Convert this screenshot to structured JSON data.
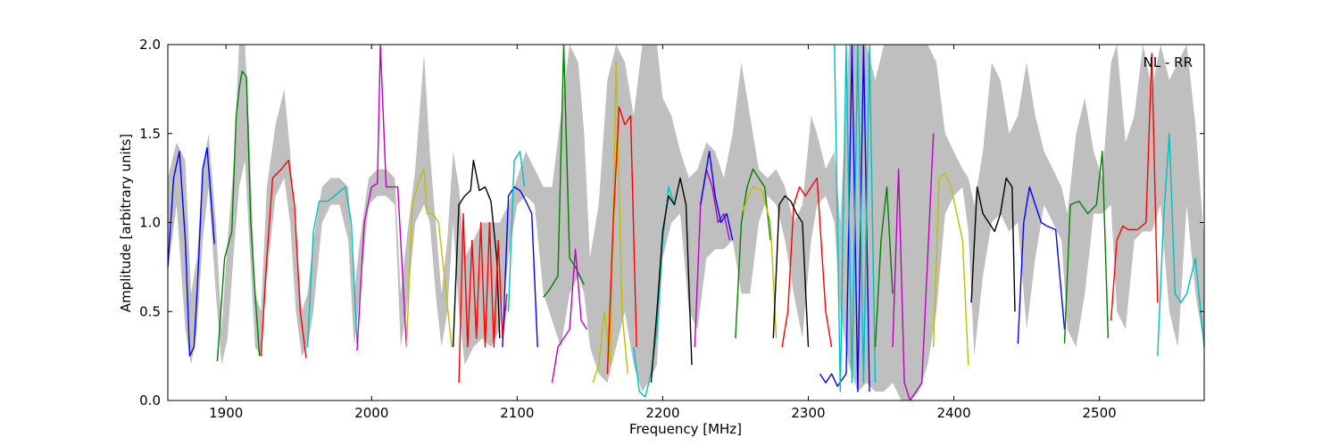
{
  "chart_data": {
    "type": "line",
    "title": "",
    "xlabel": "Frequency [MHz]",
    "ylabel": "Amplitude [arbitrary units]",
    "xlim": [
      1860,
      2572
    ],
    "ylim": [
      0.0,
      2.0
    ],
    "xticks": [
      1900,
      2000,
      2100,
      2200,
      2300,
      2400,
      2500
    ],
    "xtick_labels": [
      "1900",
      "2000",
      "2100",
      "2200",
      "2300",
      "2400",
      "2500"
    ],
    "yticks": [
      0.0,
      0.5,
      1.0,
      1.5,
      2.0
    ],
    "ytick_labels": [
      "0.0",
      "0.5",
      "1.0",
      "1.5",
      "2.0"
    ],
    "grid": false,
    "annotation": "NL - RR",
    "envelope_color": "#bfbfbf",
    "envelope": {
      "x": [
        1860,
        1866,
        1872,
        1876,
        1880,
        1884,
        1888,
        1893,
        1897,
        1901,
        1905,
        1909,
        1913,
        1916,
        1920,
        1924,
        1928,
        1934,
        1940,
        1944,
        1948,
        1952,
        1956,
        1960,
        1966,
        1972,
        1978,
        1984,
        1988,
        1992,
        1998,
        2004,
        2010,
        2016,
        2020,
        2024,
        2030,
        2036,
        2040,
        2044,
        2048,
        2052,
        2056,
        2060,
        2064,
        2070,
        2076,
        2082,
        2088,
        2094,
        2100,
        2106,
        2112,
        2118,
        2124,
        2130,
        2136,
        2142,
        2146,
        2150,
        2156,
        2162,
        2168,
        2174,
        2180,
        2186,
        2190,
        2196,
        2200,
        2206,
        2212,
        2218,
        2224,
        2230,
        2236,
        2242,
        2248,
        2254,
        2260,
        2266,
        2272,
        2278,
        2284,
        2290,
        2296,
        2302,
        2306,
        2312,
        2318,
        2322,
        2328,
        2334,
        2340,
        2346,
        2352,
        2358,
        2364,
        2370,
        2376,
        2382,
        2388,
        2394,
        2400,
        2406,
        2410,
        2414,
        2420,
        2426,
        2432,
        2438,
        2444,
        2450,
        2456,
        2462,
        2468,
        2474,
        2478,
        2484,
        2490,
        2496,
        2502,
        2508,
        2512,
        2518,
        2524,
        2530,
        2536,
        2542,
        2548,
        2554,
        2560,
        2566,
        2572
      ],
      "lo": [
        0.72,
        1.1,
        0.4,
        0.2,
        0.4,
        0.9,
        1.2,
        0.6,
        0.2,
        0.35,
        0.8,
        1.2,
        1.35,
        0.9,
        0.3,
        0.25,
        0.7,
        1.15,
        1.25,
        1.0,
        0.5,
        0.25,
        0.3,
        0.5,
        1.0,
        1.1,
        1.1,
        0.9,
        0.3,
        0.6,
        1.1,
        1.15,
        1.15,
        1.1,
        0.3,
        0.5,
        1.0,
        1.1,
        1.0,
        0.6,
        0.3,
        0.5,
        1.0,
        0.5,
        0.2,
        0.3,
        0.35,
        0.3,
        0.4,
        0.8,
        1.1,
        1.15,
        1.1,
        0.6,
        0.45,
        0.3,
        0.6,
        0.7,
        0.6,
        0.3,
        0.15,
        0.1,
        0.3,
        0.5,
        0.2,
        0.05,
        0.1,
        0.2,
        0.8,
        1.0,
        1.05,
        0.5,
        0.4,
        0.8,
        0.85,
        0.85,
        0.9,
        0.6,
        0.6,
        1.0,
        1.15,
        1.1,
        0.9,
        0.6,
        0.35,
        0.9,
        1.1,
        1.15,
        1.0,
        0.5,
        0.2,
        0.05,
        0.1,
        0.05,
        0.05,
        0.1,
        0.0,
        0.0,
        0.05,
        0.2,
        0.5,
        1.05,
        1.15,
        1.2,
        0.95,
        0.25,
        0.7,
        1.0,
        1.05,
        0.95,
        1.0,
        0.4,
        0.8,
        1.1,
        1.0,
        0.9,
        0.4,
        0.3,
        0.6,
        1.05,
        1.05,
        1.1,
        0.5,
        0.4,
        0.9,
        0.95,
        0.95,
        1.1,
        0.5,
        0.3,
        1.1,
        0.6,
        0.3
      ],
      "hi": [
        1.25,
        1.45,
        1.35,
        0.6,
        0.8,
        1.3,
        1.5,
        1.0,
        0.4,
        0.9,
        1.3,
        2.0,
        2.0,
        1.5,
        0.6,
        0.5,
        1.2,
        1.55,
        1.75,
        1.4,
        0.9,
        0.5,
        0.6,
        0.9,
        1.2,
        1.25,
        1.25,
        1.2,
        0.6,
        0.9,
        1.25,
        1.3,
        1.3,
        1.25,
        0.6,
        0.9,
        1.3,
        1.95,
        1.4,
        1.0,
        0.6,
        0.9,
        1.4,
        1.2,
        0.8,
        0.9,
        1.0,
        1.0,
        1.0,
        1.1,
        1.25,
        1.4,
        1.3,
        1.2,
        1.2,
        1.6,
        2.0,
        1.9,
        1.5,
        0.8,
        1.1,
        1.8,
        2.0,
        1.9,
        1.6,
        2.0,
        2.0,
        2.0,
        1.7,
        1.6,
        1.4,
        1.25,
        1.3,
        1.45,
        1.4,
        1.25,
        1.5,
        1.9,
        1.6,
        1.3,
        1.25,
        1.3,
        1.2,
        1.0,
        1.1,
        1.6,
        1.5,
        1.3,
        1.4,
        1.0,
        2.0,
        2.0,
        2.0,
        1.8,
        2.0,
        2.0,
        2.0,
        2.0,
        2.0,
        2.0,
        1.9,
        1.5,
        1.4,
        1.3,
        1.25,
        1.1,
        1.4,
        1.9,
        1.8,
        1.5,
        1.6,
        1.9,
        1.6,
        1.4,
        1.3,
        1.2,
        1.05,
        1.5,
        1.7,
        1.4,
        1.25,
        1.9,
        2.0,
        1.45,
        1.6,
        2.0,
        1.75,
        2.0,
        1.8,
        1.9,
        2.0,
        1.55,
        0.9
      ]
    },
    "series": [
      {
        "color": "#0000ff",
        "x": [
          1860,
          1864,
          1868,
          1872,
          1875,
          1878,
          1881,
          1884,
          1887,
          1890,
          1892
        ],
        "y": [
          0.75,
          1.25,
          1.4,
          0.9,
          0.25,
          0.3,
          0.75,
          1.3,
          1.42,
          1.1,
          0.88
        ]
      },
      {
        "color": "#008000",
        "x": [
          1894,
          1899,
          1904,
          1907,
          1909,
          1911,
          1914,
          1917,
          1920,
          1923
        ],
        "y": [
          0.22,
          0.8,
          0.95,
          1.6,
          1.75,
          1.85,
          1.82,
          1.0,
          0.6,
          0.25
        ]
      },
      {
        "color": "#ff0000",
        "x": [
          1924,
          1928,
          1932,
          1938,
          1943,
          1947,
          1951,
          1955
        ],
        "y": [
          0.25,
          0.8,
          1.25,
          1.3,
          1.35,
          1.1,
          0.5,
          0.24
        ]
      },
      {
        "color": "#00bfbf",
        "x": [
          1956,
          1960,
          1964,
          1970,
          1976,
          1982,
          1986,
          1990
        ],
        "y": [
          0.3,
          0.95,
          1.12,
          1.12,
          1.16,
          1.2,
          1.0,
          0.32
        ]
      },
      {
        "color": "#bf00bf",
        "x": [
          1990,
          1995,
          2000,
          2004,
          2006,
          2010,
          2014,
          2018,
          2024
        ],
        "y": [
          0.28,
          1.0,
          1.2,
          1.22,
          2.0,
          1.2,
          1.2,
          1.2,
          0.3
        ]
      },
      {
        "color": "#bfbf00",
        "x": [
          2024,
          2028,
          2032,
          2036,
          2038,
          2042,
          2046,
          2050,
          2055
        ],
        "y": [
          0.3,
          1.1,
          1.22,
          1.3,
          1.05,
          1.05,
          1.0,
          0.7,
          0.3
        ]
      },
      {
        "color": "#000000",
        "x": [
          2056,
          2060,
          2064,
          2068,
          2070,
          2074,
          2078,
          2082,
          2086,
          2088
        ],
        "y": [
          0.3,
          1.1,
          1.15,
          1.18,
          1.35,
          1.18,
          1.2,
          1.12,
          0.8,
          0.35
        ]
      },
      {
        "color": "#ff0000",
        "x": [
          2060,
          2063,
          2066,
          2069,
          2072,
          2075,
          2078,
          2081,
          2084,
          2087,
          2090,
          2093
        ],
        "y": [
          0.1,
          1.05,
          0.3,
          0.9,
          0.35,
          1.0,
          0.3,
          1.0,
          0.3,
          0.9,
          0.35,
          0.6
        ]
      },
      {
        "color": "#0000ff",
        "x": [
          2090,
          2094,
          2098,
          2102,
          2106,
          2110,
          2114
        ],
        "y": [
          0.3,
          1.15,
          1.2,
          1.18,
          1.12,
          1.05,
          0.3
        ]
      },
      {
        "color": "#00bfbf",
        "x": [
          2094,
          2098,
          2102,
          2105
        ],
        "y": [
          0.5,
          1.35,
          1.4,
          1.2
        ]
      },
      {
        "color": "#008000",
        "x": [
          2118,
          2122,
          2128,
          2132,
          2136,
          2140,
          2146
        ],
        "y": [
          0.58,
          0.62,
          0.7,
          2.0,
          0.8,
          0.75,
          0.65
        ]
      },
      {
        "color": "#bf00bf",
        "x": [
          2124,
          2128,
          2132,
          2136,
          2140,
          2144,
          2148
        ],
        "y": [
          0.1,
          0.3,
          0.35,
          0.4,
          0.85,
          0.45,
          0.4
        ]
      },
      {
        "color": "#bfbf00",
        "x": [
          2152,
          2156,
          2160,
          2164,
          2168,
          2172,
          2176
        ],
        "y": [
          0.1,
          0.2,
          0.5,
          0.2,
          1.9,
          0.5,
          0.15
        ]
      },
      {
        "color": "#ff0000",
        "x": [
          2162,
          2166,
          2170,
          2174,
          2178,
          2182
        ],
        "y": [
          0.15,
          1.0,
          1.65,
          1.55,
          1.6,
          0.3
        ]
      },
      {
        "color": "#00bfbf",
        "x": [
          2180,
          2184,
          2188,
          2192,
          2196,
          2200,
          2204,
          2208
        ],
        "y": [
          0.3,
          0.05,
          0.02,
          0.15,
          0.4,
          0.9,
          1.2,
          1.1
        ]
      },
      {
        "color": "#000000",
        "x": [
          2192,
          2196,
          2200,
          2204,
          2208,
          2212,
          2216,
          2220
        ],
        "y": [
          0.1,
          0.5,
          0.95,
          1.15,
          1.1,
          1.25,
          1.1,
          0.2
        ]
      },
      {
        "color": "#bf00bf",
        "x": [
          2222,
          2226,
          2230,
          2234,
          2238,
          2242,
          2246
        ],
        "y": [
          0.3,
          1.1,
          1.3,
          1.2,
          1.0,
          1.05,
          0.9
        ]
      },
      {
        "color": "#0000ff",
        "x": [
          2226,
          2232,
          2236,
          2240,
          2244,
          2248
        ],
        "y": [
          1.1,
          1.4,
          1.15,
          1.0,
          1.05,
          0.9
        ]
      },
      {
        "color": "#008000",
        "x": [
          2250,
          2254,
          2258,
          2262,
          2266,
          2270,
          2274
        ],
        "y": [
          0.35,
          1.0,
          1.2,
          1.3,
          1.25,
          1.2,
          0.9
        ]
      },
      {
        "color": "#bfbf00",
        "x": [
          2254,
          2262,
          2268,
          2274,
          2278
        ],
        "y": [
          1.05,
          1.2,
          1.18,
          1.0,
          0.35
        ]
      },
      {
        "color": "#ff0000",
        "x": [
          2282,
          2286,
          2290,
          2294,
          2298,
          2302,
          2306,
          2312,
          2316
        ],
        "y": [
          0.3,
          0.5,
          1.1,
          1.2,
          1.15,
          1.2,
          1.25,
          0.5,
          0.3
        ]
      },
      {
        "color": "#000000",
        "x": [
          2276,
          2280,
          2284,
          2288,
          2292,
          2296,
          2300
        ],
        "y": [
          0.35,
          1.1,
          1.15,
          1.12,
          1.05,
          1.0,
          0.3
        ]
      },
      {
        "color": "#0000ff",
        "x": [
          2308,
          2312,
          2316,
          2320,
          2326,
          2330,
          2334,
          2338,
          2342
        ],
        "y": [
          0.15,
          0.1,
          0.15,
          0.08,
          0.15,
          2.0,
          0.05,
          2.0,
          0.05
        ]
      },
      {
        "color": "#00bfbf",
        "x": [
          2318,
          2322,
          2326,
          2330,
          2334,
          2338,
          2342,
          2346
        ],
        "y": [
          2.0,
          0.05,
          2.0,
          0.1,
          2.0,
          0.1,
          2.0,
          0.1
        ]
      },
      {
        "color": "#008000",
        "x": [
          2346,
          2350,
          2354,
          2358
        ],
        "y": [
          0.3,
          0.9,
          1.2,
          0.6
        ]
      },
      {
        "color": "#bf00bf",
        "x": [
          2358,
          2362,
          2366,
          2370,
          2374,
          2378,
          2382,
          2386
        ],
        "y": [
          0.3,
          1.3,
          0.1,
          0.0,
          0.05,
          0.1,
          0.8,
          1.5
        ]
      },
      {
        "color": "#bfbf00",
        "x": [
          2386,
          2390,
          2394,
          2398,
          2402,
          2406,
          2410
        ],
        "y": [
          0.3,
          1.25,
          1.28,
          1.2,
          1.05,
          0.9,
          0.2
        ]
      },
      {
        "color": "#000000",
        "x": [
          2412,
          2416,
          2420,
          2424,
          2428,
          2432,
          2436,
          2440,
          2442
        ],
        "y": [
          0.55,
          1.2,
          1.05,
          1.0,
          0.95,
          1.05,
          1.25,
          1.2,
          0.5
        ]
      },
      {
        "color": "#0000ff",
        "x": [
          2444,
          2448,
          2452,
          2456,
          2460,
          2464,
          2470,
          2476
        ],
        "y": [
          0.32,
          1.0,
          1.2,
          1.1,
          1.0,
          0.98,
          0.96,
          0.4
        ]
      },
      {
        "color": "#008000",
        "x": [
          2476,
          2480,
          2486,
          2492,
          2498,
          2502,
          2506
        ],
        "y": [
          0.32,
          1.1,
          1.12,
          1.05,
          1.1,
          1.4,
          0.35
        ]
      },
      {
        "color": "#ff0000",
        "x": [
          2508,
          2512,
          2516,
          2520,
          2526,
          2532,
          2536,
          2540
        ],
        "y": [
          0.45,
          0.9,
          0.98,
          0.96,
          0.96,
          1.0,
          1.95,
          0.55
        ]
      },
      {
        "color": "#00bfbf",
        "x": [
          2540,
          2544,
          2548,
          2552,
          2556,
          2560,
          2566,
          2572
        ],
        "y": [
          0.25,
          1.0,
          1.5,
          0.6,
          0.55,
          0.6,
          0.8,
          0.3
        ]
      }
    ]
  }
}
